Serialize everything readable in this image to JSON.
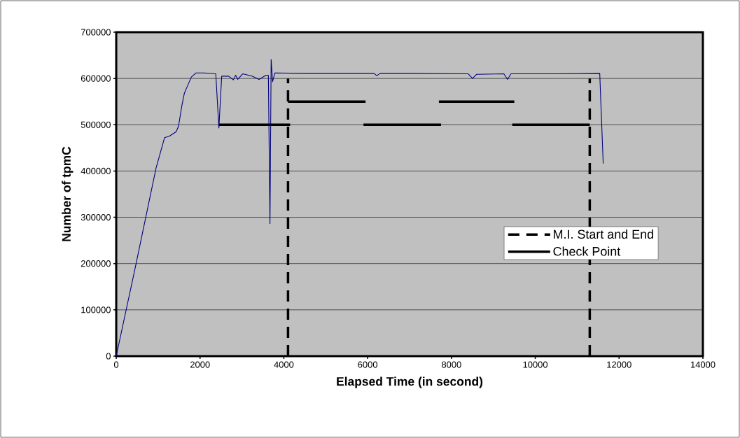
{
  "chart_data": {
    "type": "line",
    "xlabel": "Elapsed Time (in second)",
    "ylabel": "Number of tpmC",
    "xlim": [
      0,
      14000
    ],
    "ylim": [
      0,
      700000
    ],
    "xticks": [
      0,
      2000,
      4000,
      6000,
      8000,
      10000,
      12000,
      14000
    ],
    "yticks": [
      0,
      100000,
      200000,
      300000,
      400000,
      500000,
      600000,
      700000
    ],
    "grid": "y",
    "legend": "right",
    "marker": "none",
    "series": [
      {
        "color": "#000080",
        "line_style": "solid",
        "x": [
          0,
          451,
          952,
          1153,
          1264,
          1431,
          1487,
          1570,
          1626,
          1682,
          1793,
          1905,
          2100,
          2376,
          2450,
          2517,
          2684,
          2795,
          2850,
          2900,
          3018,
          3241,
          3408,
          3575,
          3631,
          3669,
          3697,
          3731,
          3786,
          4500,
          5500,
          6150,
          6218,
          6300,
          7000,
          8400,
          8503,
          8600,
          9250,
          9339,
          9420,
          10500,
          11538,
          11621
        ],
        "values": [
          0,
          190000,
          407000,
          472000,
          475000,
          485000,
          497000,
          543000,
          568000,
          580000,
          603000,
          612000,
          612000,
          610000,
          493000,
          605000,
          605000,
          597000,
          607000,
          598000,
          610000,
          605000,
          598000,
          607000,
          607000,
          286000,
          641000,
          593000,
          612000,
          611000,
          611000,
          611000,
          606000,
          611000,
          611000,
          610000,
          600000,
          609000,
          610000,
          598000,
          610000,
          610000,
          611000,
          416000
        ]
      },
      {
        "name": "M.I. Start and End",
        "color": "#000000",
        "line_style": "dashed",
        "x": [
          4100,
          4100
        ],
        "values": [
          0,
          600000
        ]
      },
      {
        "color": "#000000",
        "line_style": "dashed",
        "x": [
          11300,
          11300
        ],
        "values": [
          0,
          600000
        ]
      },
      {
        "name": "Check Point",
        "color": "#000000",
        "line_style": "solid",
        "x": [
          2450,
          4150
        ],
        "values": [
          500000,
          500000
        ]
      },
      {
        "color": "#000000",
        "line_style": "solid",
        "x": [
          4100,
          5950
        ],
        "values": [
          550000,
          550000
        ]
      },
      {
        "color": "#000000",
        "line_style": "solid",
        "x": [
          5900,
          7750
        ],
        "values": [
          500000,
          500000
        ]
      },
      {
        "color": "#000000",
        "line_style": "solid",
        "x": [
          7700,
          9500
        ],
        "values": [
          550000,
          550000
        ]
      },
      {
        "color": "#000000",
        "line_style": "solid",
        "x": [
          9450,
          11300
        ],
        "values": [
          500000,
          500000
        ]
      }
    ]
  }
}
